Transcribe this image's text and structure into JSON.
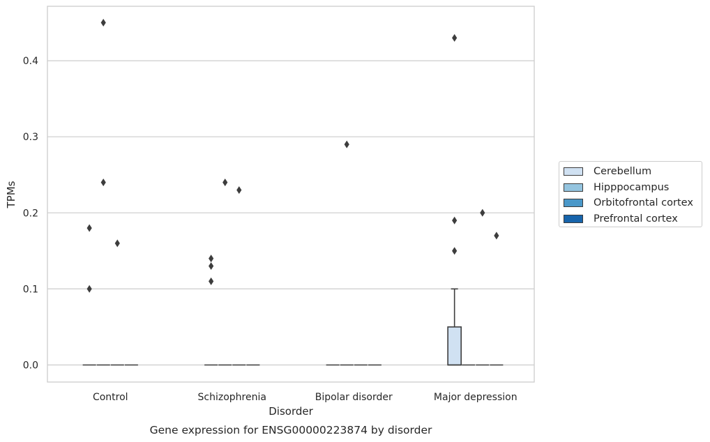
{
  "colors": {
    "Cerebellum": "#d0e1f2",
    "Hipppocampus": "#94c4df",
    "Orbitofrontal cortex": "#4a98c9",
    "Prefrontal cortex": "#1764ab",
    "grid": "#cccccc",
    "frame": "#cccccc",
    "box_edge": "#3d3d3d"
  },
  "chart_data": {
    "type": "box",
    "title": "",
    "caption": "Gene expression for ENSG00000223874 by disorder",
    "xlabel": "Disorder",
    "ylabel": "TPMs",
    "ylim": [
      -0.022,
      0.475
    ],
    "yticks": [
      0.0,
      0.1,
      0.2,
      0.3,
      0.4
    ],
    "ytick_labels": [
      "0.0",
      "0.1",
      "0.2",
      "0.3",
      "0.4"
    ],
    "categories": [
      "Control",
      "Schizophrenia",
      "Bipolar disorder",
      "Major depression"
    ],
    "grid": true,
    "legend_position": "right, outside",
    "series": [
      {
        "name": "Cerebellum",
        "boxes": [
          {
            "q1": 0,
            "median": 0,
            "q3": 0,
            "whisker_low": 0,
            "whisker_high": 0,
            "outliers": [
              0.1,
              0.18
            ]
          },
          {
            "q1": 0,
            "median": 0,
            "q3": 0,
            "whisker_low": 0,
            "whisker_high": 0,
            "outliers": [
              0.11,
              0.13,
              0.14
            ]
          },
          {
            "q1": 0,
            "median": 0,
            "q3": 0,
            "whisker_low": 0,
            "whisker_high": 0,
            "outliers": []
          },
          {
            "q1": 0,
            "median": 0,
            "q3": 0.05,
            "whisker_low": 0,
            "whisker_high": 0.1,
            "outliers": [
              0.15,
              0.19,
              0.43
            ]
          }
        ]
      },
      {
        "name": "Hipppocampus",
        "boxes": [
          {
            "q1": 0,
            "median": 0,
            "q3": 0,
            "whisker_low": 0,
            "whisker_high": 0,
            "outliers": [
              0.24,
              0.45
            ]
          },
          {
            "q1": 0,
            "median": 0,
            "q3": 0,
            "whisker_low": 0,
            "whisker_high": 0,
            "outliers": [
              0.24
            ]
          },
          {
            "q1": 0,
            "median": 0,
            "q3": 0,
            "whisker_low": 0,
            "whisker_high": 0,
            "outliers": [
              0.29
            ]
          },
          {
            "q1": 0,
            "median": 0,
            "q3": 0,
            "whisker_low": 0,
            "whisker_high": 0,
            "outliers": []
          }
        ]
      },
      {
        "name": "Orbitofrontal cortex",
        "boxes": [
          {
            "q1": 0,
            "median": 0,
            "q3": 0,
            "whisker_low": 0,
            "whisker_high": 0,
            "outliers": [
              0.16
            ]
          },
          {
            "q1": 0,
            "median": 0,
            "q3": 0,
            "whisker_low": 0,
            "whisker_high": 0,
            "outliers": [
              0.23
            ]
          },
          {
            "q1": 0,
            "median": 0,
            "q3": 0,
            "whisker_low": 0,
            "whisker_high": 0,
            "outliers": []
          },
          {
            "q1": 0,
            "median": 0,
            "q3": 0,
            "whisker_low": 0,
            "whisker_high": 0,
            "outliers": [
              0.2
            ]
          }
        ]
      },
      {
        "name": "Prefrontal cortex",
        "boxes": [
          {
            "q1": 0,
            "median": 0,
            "q3": 0,
            "whisker_low": 0,
            "whisker_high": 0,
            "outliers": []
          },
          {
            "q1": 0,
            "median": 0,
            "q3": 0,
            "whisker_low": 0,
            "whisker_high": 0,
            "outliers": []
          },
          {
            "q1": 0,
            "median": 0,
            "q3": 0,
            "whisker_low": 0,
            "whisker_high": 0,
            "outliers": []
          },
          {
            "q1": 0,
            "median": 0,
            "q3": 0,
            "whisker_low": 0,
            "whisker_high": 0,
            "outliers": [
              0.17
            ]
          }
        ]
      }
    ]
  }
}
